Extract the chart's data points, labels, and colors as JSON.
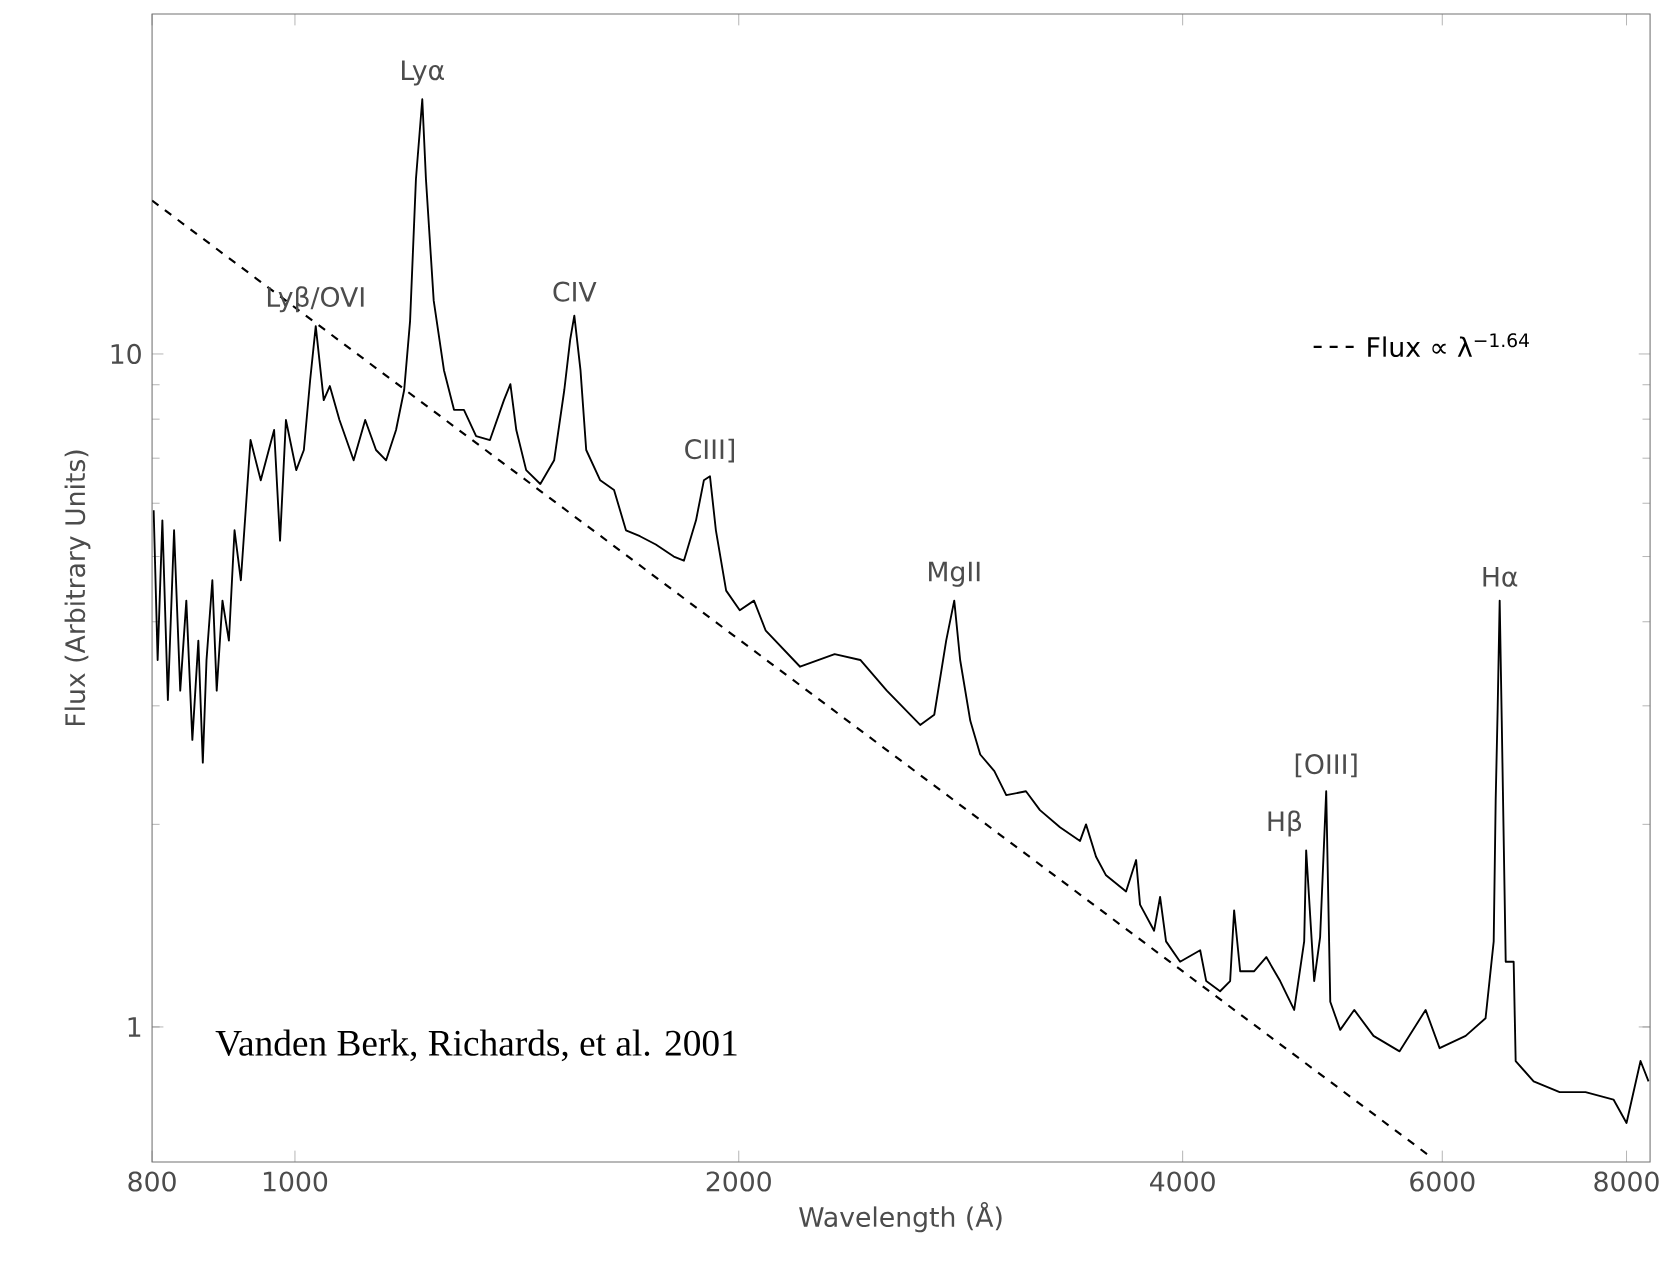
{
  "chart_data": {
    "type": "line",
    "xlabel": "Wavelength (Å)",
    "ylabel": "Flux (Arbitrary Units)",
    "log": "xy",
    "xlim": [
      800,
      8300
    ],
    "ylim": [
      0.63,
      32
    ],
    "xticks": [
      800,
      1000,
      2000,
      4000,
      6000,
      8000
    ],
    "yticks": [
      1,
      10
    ],
    "legend": "top right",
    "series": [
      {
        "color": "#000000",
        "line_style": "solid",
        "x": [
          802,
          807,
          813,
          820,
          828,
          836,
          844,
          852,
          860,
          866,
          871,
          879,
          885,
          893,
          902,
          910,
          919,
          933,
          948,
          968,
          977,
          986,
          1002,
          1014,
          1024,
          1033,
          1046,
          1056,
          1072,
          1096,
          1116,
          1135,
          1153,
          1171,
          1186,
          1197,
          1208,
          1220,
          1227,
          1242,
          1262,
          1282,
          1302,
          1327,
          1356,
          1386,
          1400,
          1413,
          1435,
          1467,
          1499,
          1523,
          1537,
          1547,
          1562,
          1576,
          1611,
          1646,
          1677,
          1714,
          1757,
          1807,
          1836,
          1871,
          1894,
          1912,
          1930,
          1961,
          2003,
          2048,
          2086,
          2201,
          2323,
          2418,
          2520,
          2655,
          2714,
          2765,
          2800,
          2826,
          2871,
          2916,
          2981,
          3037,
          3132,
          3201,
          3303,
          3408,
          3440,
          3494,
          3549,
          3662,
          3720,
          3743,
          3826,
          3862,
          3898,
          3985,
          4111,
          4150,
          4241,
          4308,
          4335,
          4376,
          4473,
          4558,
          4658,
          4761,
          4836,
          4851,
          4912,
          4958,
          5005,
          5037,
          5116,
          5229,
          5389,
          5613,
          5846,
          5975,
          6223,
          6420,
          6502,
          6522,
          6542,
          6563,
          6584,
          6625,
          6708,
          6729,
          6920,
          7207,
          7506,
          7840,
          8000,
          8177,
          8280
        ],
        "values": [
          5.86,
          3.51,
          5.66,
          3.06,
          5.47,
          3.16,
          4.3,
          2.67,
          3.75,
          2.47,
          3.51,
          4.61,
          3.16,
          4.3,
          3.75,
          5.47,
          4.61,
          7.45,
          6.49,
          7.71,
          5.28,
          7.98,
          6.72,
          7.2,
          9.14,
          11.0,
          8.54,
          8.96,
          7.98,
          6.95,
          7.98,
          7.2,
          6.95,
          7.71,
          8.84,
          11.2,
          18.2,
          23.9,
          18.2,
          12.0,
          9.46,
          8.26,
          8.26,
          7.55,
          7.45,
          8.54,
          9.02,
          7.71,
          6.72,
          6.41,
          6.95,
          8.84,
          10.5,
          11.4,
          9.46,
          7.2,
          6.49,
          6.28,
          5.47,
          5.36,
          5.21,
          5.0,
          4.93,
          5.66,
          6.49,
          6.58,
          5.47,
          4.45,
          4.16,
          4.3,
          3.88,
          3.43,
          3.58,
          3.51,
          3.16,
          2.81,
          2.91,
          3.75,
          4.3,
          3.51,
          2.85,
          2.54,
          2.4,
          2.21,
          2.24,
          2.1,
          1.98,
          1.89,
          2.0,
          1.79,
          1.68,
          1.59,
          1.77,
          1.52,
          1.39,
          1.56,
          1.34,
          1.25,
          1.3,
          1.17,
          1.13,
          1.17,
          1.49,
          1.21,
          1.21,
          1.27,
          1.17,
          1.06,
          1.34,
          1.83,
          1.17,
          1.36,
          2.24,
          1.09,
          0.99,
          1.06,
          0.97,
          0.92,
          1.06,
          0.93,
          0.97,
          1.03,
          1.34,
          2.17,
          2.95,
          4.3,
          2.85,
          1.25,
          1.25,
          0.89,
          0.83,
          0.8,
          0.8,
          0.78,
          0.72,
          0.89,
          0.83
        ]
      },
      {
        "name": "Flux ∝ λ$^{−1.64}$",
        "color": "#000000",
        "line_style": "dashed",
        "x": [
          800,
          5900
        ],
        "values": [
          16.9,
          0.64
        ]
      }
    ],
    "annotations": [
      {
        "text": "Lyβ/OVI",
        "x": 1033,
        "y": 11.0
      },
      {
        "text": "Lyα",
        "x": 1220,
        "y": 23.9
      },
      {
        "text": "CIV",
        "x": 1547,
        "y": 11.4
      },
      {
        "text": "CIII]",
        "x": 1912,
        "y": 6.58
      },
      {
        "text": "MgII",
        "x": 2800,
        "y": 4.3
      },
      {
        "text": "Hβ",
        "x": 4851,
        "y": 1.83
      },
      {
        "text": "[OIII]",
        "x": 5005,
        "y": 2.24
      },
      {
        "text": "Hα",
        "x": 6563,
        "y": 4.3
      },
      "Vanden Berk, Richards, et al. 2001"
    ]
  }
}
